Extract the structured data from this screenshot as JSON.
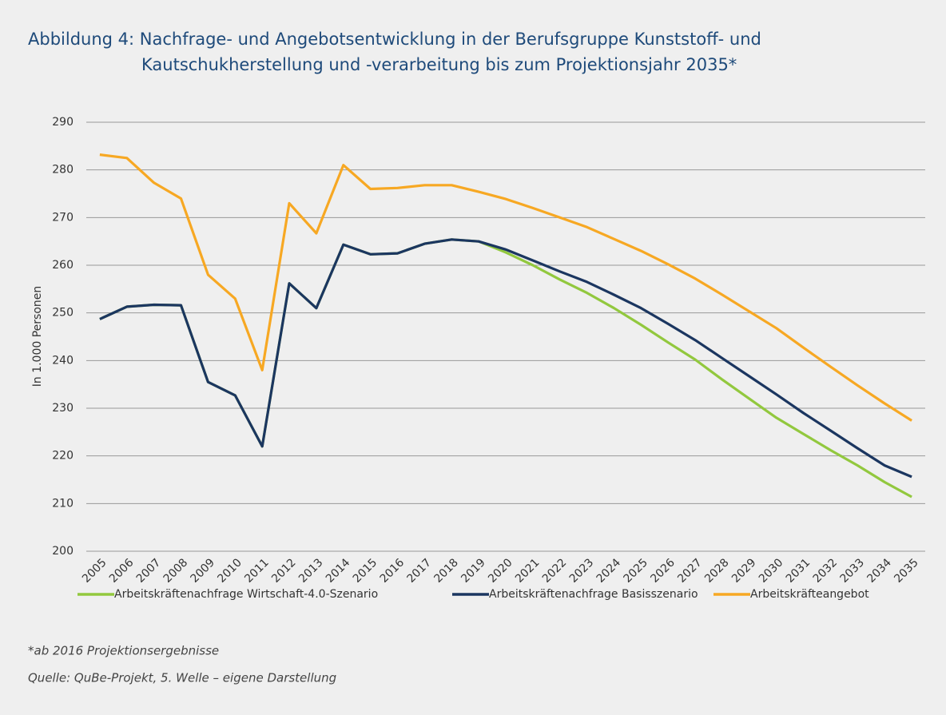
{
  "chart_data": {
    "type": "line",
    "title": [
      "Abbildung 4: Nachfrage- und Angebotsentwicklung in der Berufsgruppe Kunststoff- und",
      "Kautschukherstellung und -verarbeitung bis zum Projektionsjahr 2035*"
    ],
    "y_label": "In 1.000 Personen",
    "categories": [
      "2005",
      "2006",
      "2007",
      "2008",
      "2009",
      "2010",
      "2011",
      "2012",
      "2013",
      "2014",
      "2015",
      "2016",
      "2017",
      "2018",
      "2019",
      "2020",
      "2021",
      "2022",
      "2023",
      "2024",
      "2025",
      "2026",
      "2027",
      "2028",
      "2029",
      "2030",
      "2031",
      "2032",
      "2033",
      "2034",
      "2035"
    ],
    "series": [
      {
        "name": "Arbeitskräftenachfrage Wirtschaft-4.0-Szenario",
        "color": "#92c83e",
        "values": [
          248.7,
          251.3,
          251.7,
          251.6,
          235.5,
          232.7,
          222,
          256.2,
          251,
          264.3,
          262.3,
          262.5,
          264.5,
          265.4,
          265,
          262.7,
          260,
          257,
          254.2,
          251,
          247.5,
          243.8,
          240.2,
          236,
          232,
          228,
          224.6,
          221.2,
          218,
          214.5,
          211.4
        ]
      },
      {
        "name": "Arbeitskräftenachfrage Basisszenario",
        "color": "#1b3660",
        "values": [
          248.7,
          251.3,
          251.7,
          251.6,
          235.5,
          232.7,
          222,
          256.2,
          251,
          264.3,
          262.3,
          262.5,
          264.5,
          265.4,
          265,
          263.3,
          261,
          258.7,
          256.5,
          253.8,
          251,
          247.7,
          244.3,
          240.5,
          236.7,
          232.9,
          229,
          225.3,
          221.6,
          218,
          215.6
        ]
      },
      {
        "name": "Arbeitskräfteangebot",
        "color": "#f7a823",
        "values": [
          283.2,
          282.5,
          277.3,
          274,
          258,
          253,
          238,
          273,
          266.7,
          281,
          276,
          276.2,
          276.8,
          276.8,
          275.4,
          273.9,
          272,
          270,
          268,
          265.5,
          263,
          260.2,
          257.2,
          253.8,
          250.3,
          246.8,
          242.7,
          238.7,
          234.8,
          231,
          227.4
        ]
      }
    ],
    "ylim": [
      200,
      290
    ],
    "yticks": [
      200,
      210,
      220,
      230,
      240,
      250,
      260,
      270,
      280,
      290
    ],
    "grid": true,
    "footnotes": [
      "*ab 2016 Projektionsergebnisse",
      "Quelle: QuBe-Projekt, 5. Welle – eigene Darstellung"
    ]
  }
}
